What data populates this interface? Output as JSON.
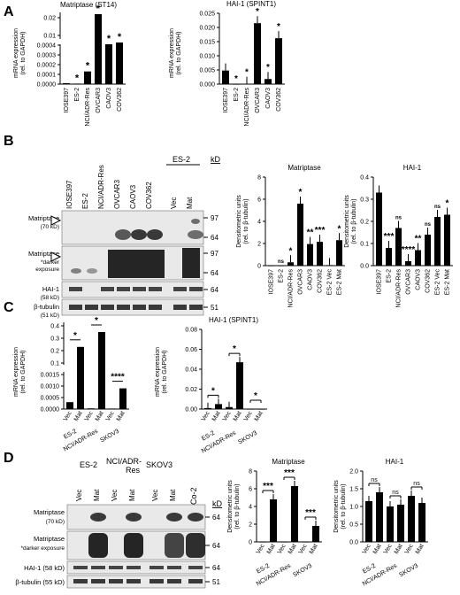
{
  "panels": [
    {
      "letter": "A"
    },
    {
      "letter": "B"
    },
    {
      "letter": "C"
    },
    {
      "letter": "D"
    }
  ],
  "colors": {
    "bar": "#000000",
    "blot_bg": "#e9e9e9",
    "band": "#1a1a1a",
    "axis": "#000000"
  },
  "ylabel_mrna_1": "mRNA expression",
  "ylabel_mrna_2": "(rel. to GAPDH)",
  "ylabel_dens_1": "Densitometric units",
  "ylabel_dens_2": "(rel. to β-tubulin)",
  "blotB": {
    "lanes": [
      "IOSE397",
      "ES-2",
      "NCI/ADR-Res",
      "OVCAR3",
      "CAOV3",
      "COV362",
      "Vec",
      "Mat"
    ],
    "group_label": "ES-2",
    "kd_label": "kD",
    "rows": [
      {
        "label1": "Matriptase",
        "label2": "(70 kD)",
        "kd": [
          "97",
          "64"
        ]
      },
      {
        "label1": "Matriptase",
        "label2": "*darker",
        "label3": "exposure",
        "kd": [
          "97",
          "64"
        ]
      },
      {
        "label1": "HAI-1",
        "label2": "(58 kD)",
        "kd": [
          "64"
        ]
      },
      {
        "label1": "β-tubulin",
        "label2": "(51 kD)",
        "kd": [
          "51"
        ]
      }
    ]
  },
  "blotD": {
    "groups": [
      "ES-2",
      "NCI/ADR-",
      "Res",
      "SKOV3",
      "CaCo-2"
    ],
    "lanes": [
      "Vec",
      "Mat",
      "Vec",
      "Mat",
      "Vec",
      "Mat"
    ],
    "kd_label": "kD",
    "rows": [
      {
        "label1": "Matriptase",
        "label2": "(70 kD)",
        "kd": [
          "64"
        ]
      },
      {
        "label1": "Matriptase",
        "label2": "*darker exposure",
        "kd": [
          "64"
        ]
      },
      {
        "label1": "HAI-1 (58 kD)",
        "kd": [
          "64"
        ]
      },
      {
        "label1": "β-tubulin (55 kD)",
        "kd": [
          "51"
        ]
      }
    ]
  },
  "chart_data": [
    {
      "id": "A1",
      "type": "bar",
      "title": "Matriptase (ST14)",
      "categories": [
        "IOSE397",
        "ES-2",
        "NCI/ADR-Res",
        "OVCAR3",
        "CAOV3",
        "COV362"
      ],
      "values": [
        1e-05,
        0.0,
        0.00013,
        0.022,
        0.005,
        0.006
      ],
      "sig": [
        "",
        "*",
        "*",
        "*",
        "*",
        "*"
      ],
      "yticks_low": [
        "0.0000",
        "0.0001",
        "0.0002",
        "0.0003",
        "0.0004"
      ],
      "yticks_high": [
        "0.01",
        "0.02"
      ],
      "broken_axis": true
    },
    {
      "id": "A2",
      "type": "bar",
      "title": "HAI-1 (SPINT1)",
      "categories": [
        "IOSE397",
        "ES-2",
        "NCI/ADR-Res",
        "OVCAR3",
        "CAOV3",
        "COV362"
      ],
      "values": [
        0.0048,
        0.0,
        0.0001,
        0.0215,
        0.0018,
        0.0162
      ],
      "sig": [
        "",
        "*",
        "*",
        "*",
        "*",
        "*"
      ],
      "yticks": [
        "0.000",
        "0.005",
        "0.010",
        "0.015",
        "0.020",
        "0.025"
      ],
      "ylim": [
        0,
        0.025
      ]
    },
    {
      "id": "B1",
      "type": "bar",
      "title": "Matriptase",
      "categories": [
        "IOSE397",
        "ES-2",
        "NCI/ADR-Res",
        "OVCAR3",
        "CAOV3",
        "COV362",
        "ES-2 Vec",
        "ES-2 Mat"
      ],
      "values": [
        0.0,
        0.0,
        0.3,
        5.6,
        1.95,
        2.15,
        0.05,
        2.3
      ],
      "sig": [
        "",
        "ns",
        "*",
        "*",
        "**",
        "***",
        "",
        "*"
      ],
      "yticks": [
        "0",
        "2",
        "4",
        "6",
        "8"
      ],
      "ylim": [
        0,
        8
      ]
    },
    {
      "id": "B2",
      "type": "bar",
      "title": "HAI-1",
      "categories": [
        "IOSE397",
        "ES-2",
        "NCI/ADR-Res",
        "OVCAR3",
        "CAOV3",
        "COV362",
        "ES-2 Vec",
        "ES-2 Mat"
      ],
      "values": [
        0.33,
        0.08,
        0.17,
        0.02,
        0.07,
        0.14,
        0.22,
        0.23
      ],
      "sig": [
        "",
        "***",
        "ns",
        "****",
        "**",
        "ns",
        "ns",
        "*"
      ],
      "yticks": [
        "0.0",
        "0.1",
        "0.2",
        "0.3",
        "0.4"
      ],
      "ylim": [
        0,
        0.4
      ]
    },
    {
      "id": "C1",
      "type": "bar",
      "title": "Matriptase (ST14)",
      "categories": [
        "Vec",
        "Mat",
        "Vec",
        "Mat",
        "Vec",
        "Mat"
      ],
      "groups": [
        "ES-2",
        "NCI/ADR-Res",
        "SKOV3"
      ],
      "values": [
        0.0003,
        0.23,
        3e-05,
        0.35,
        0.0,
        0.0009
      ],
      "sig_pairs": [
        "*",
        "*",
        "****"
      ],
      "yticks_low": [
        "0.0000",
        "0.0005",
        "0.0010",
        "0.0015"
      ],
      "yticks_high": [
        "0.1",
        "0.2",
        "0.3",
        "0.4"
      ],
      "broken_axis": true
    },
    {
      "id": "C2",
      "type": "bar",
      "title": "HAI-1 (SPINT1)",
      "categories": [
        "Vec",
        "Mat",
        "Vec",
        "Mat",
        "Vec",
        "Mat"
      ],
      "groups": [
        "ES-2",
        "NCI/ADR-Res",
        "SKOV3"
      ],
      "values": [
        0.001,
        0.005,
        0.002,
        0.047,
        0.0,
        0.0
      ],
      "sig_pairs": [
        "*",
        "*",
        "*"
      ],
      "yticks": [
        "0.00",
        "0.02",
        "0.04",
        "0.06",
        "0.08"
      ],
      "ylim": [
        0,
        0.08
      ]
    },
    {
      "id": "D1",
      "type": "bar",
      "title": "Matriptase",
      "categories": [
        "Vec",
        "Mat",
        "Vec",
        "Mat",
        "Vec",
        "Mat"
      ],
      "groups": [
        "ES-2",
        "NCI/ADR-Res",
        "SKOV3"
      ],
      "values": [
        0.0,
        4.8,
        0.0,
        6.3,
        0.0,
        1.8
      ],
      "sig_pairs": [
        "***",
        "***",
        "***"
      ],
      "yticks": [
        "0",
        "2",
        "4",
        "6",
        "8"
      ],
      "ylim": [
        0,
        8
      ]
    },
    {
      "id": "D2",
      "type": "bar",
      "title": "HAI-1",
      "categories": [
        "Vec",
        "Mat",
        "Vec",
        "Mat",
        "Vec",
        "Mat"
      ],
      "groups": [
        "ES-2",
        "NCI/ADR-Res",
        "SKOV3"
      ],
      "values": [
        1.15,
        1.4,
        1.0,
        1.05,
        1.3,
        1.1
      ],
      "sig_pairs": [
        "ns",
        "ns",
        "ns"
      ],
      "yticks": [
        "0.0",
        "0.5",
        "1.0",
        "1.5",
        "2.0"
      ],
      "ylim": [
        0,
        2
      ]
    }
  ]
}
